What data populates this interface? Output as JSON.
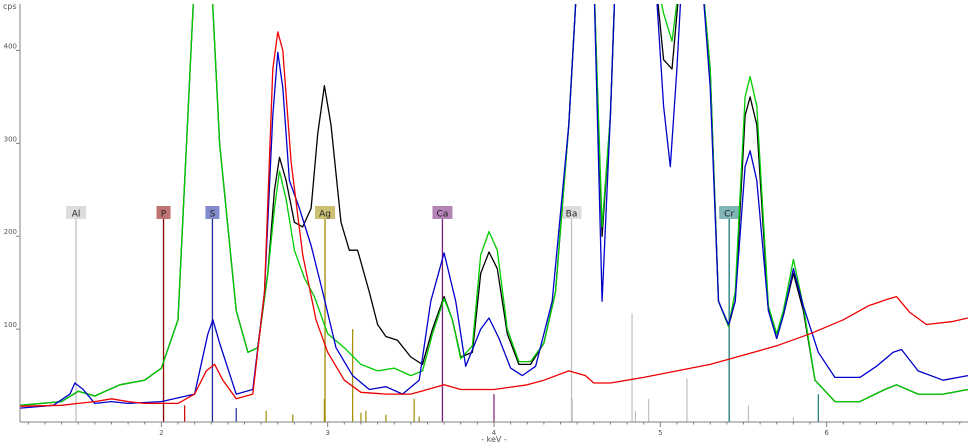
{
  "chart_data": {
    "type": "line",
    "title": "",
    "xlabel": "- keV -",
    "ylabel": "cps",
    "xlim": [
      1.15,
      6.85
    ],
    "ylim": [
      0,
      450
    ],
    "grid": false,
    "legend": "none",
    "x_ticks": [
      2,
      3,
      4,
      5,
      6
    ],
    "y_ticks": [
      100,
      200,
      300,
      400
    ],
    "series": [
      {
        "color": "#000000",
        "points": [
          [
            1.15,
            18
          ],
          [
            1.4,
            22
          ],
          [
            1.5,
            33
          ],
          [
            1.6,
            28
          ],
          [
            1.75,
            40
          ],
          [
            1.9,
            45
          ],
          [
            2.0,
            58
          ],
          [
            2.1,
            110
          ],
          [
            2.2,
            480
          ],
          [
            2.3,
            480
          ],
          [
            2.35,
            300
          ],
          [
            2.45,
            120
          ],
          [
            2.52,
            75
          ],
          [
            2.58,
            80
          ],
          [
            2.64,
            160
          ],
          [
            2.68,
            250
          ],
          [
            2.71,
            285
          ],
          [
            2.75,
            260
          ],
          [
            2.8,
            215
          ],
          [
            2.85,
            210
          ],
          [
            2.9,
            230
          ],
          [
            2.94,
            310
          ],
          [
            2.98,
            362
          ],
          [
            3.02,
            320
          ],
          [
            3.08,
            215
          ],
          [
            3.13,
            185
          ],
          [
            3.18,
            185
          ],
          [
            3.25,
            140
          ],
          [
            3.3,
            105
          ],
          [
            3.35,
            92
          ],
          [
            3.42,
            88
          ],
          [
            3.5,
            70
          ],
          [
            3.57,
            62
          ],
          [
            3.63,
            100
          ],
          [
            3.7,
            135
          ],
          [
            3.75,
            110
          ],
          [
            3.8,
            70
          ],
          [
            3.87,
            75
          ],
          [
            3.92,
            160
          ],
          [
            3.97,
            183
          ],
          [
            4.02,
            165
          ],
          [
            4.08,
            95
          ],
          [
            4.15,
            62
          ],
          [
            4.22,
            62
          ],
          [
            4.3,
            85
          ],
          [
            4.37,
            140
          ],
          [
            4.45,
            320
          ],
          [
            4.5,
            480
          ],
          [
            4.6,
            480
          ],
          [
            4.65,
            200
          ],
          [
            4.7,
            330
          ],
          [
            4.73,
            480
          ],
          [
            4.97,
            480
          ],
          [
            5.02,
            390
          ],
          [
            5.07,
            380
          ],
          [
            5.12,
            480
          ],
          [
            5.25,
            480
          ],
          [
            5.3,
            380
          ],
          [
            5.35,
            130
          ],
          [
            5.41,
            103
          ],
          [
            5.45,
            130
          ],
          [
            5.51,
            330
          ],
          [
            5.54,
            350
          ],
          [
            5.58,
            320
          ],
          [
            5.65,
            120
          ],
          [
            5.7,
            90
          ],
          [
            5.74,
            115
          ],
          [
            5.8,
            160
          ],
          [
            5.86,
            120
          ],
          [
            5.93,
            45
          ],
          [
            6.05,
            22
          ],
          [
            6.2,
            22
          ],
          [
            6.35,
            35
          ],
          [
            6.42,
            40
          ],
          [
            6.55,
            30
          ],
          [
            6.7,
            30
          ],
          [
            6.85,
            35
          ]
        ]
      },
      {
        "color": "#00cc00",
        "points": [
          [
            1.15,
            18
          ],
          [
            1.4,
            22
          ],
          [
            1.5,
            33
          ],
          [
            1.6,
            28
          ],
          [
            1.75,
            40
          ],
          [
            1.9,
            45
          ],
          [
            2.0,
            58
          ],
          [
            2.1,
            110
          ],
          [
            2.2,
            480
          ],
          [
            2.3,
            480
          ],
          [
            2.35,
            300
          ],
          [
            2.45,
            120
          ],
          [
            2.52,
            75
          ],
          [
            2.58,
            80
          ],
          [
            2.64,
            160
          ],
          [
            2.68,
            230
          ],
          [
            2.71,
            270
          ],
          [
            2.75,
            240
          ],
          [
            2.8,
            185
          ],
          [
            2.86,
            155
          ],
          [
            2.92,
            135
          ],
          [
            3.0,
            95
          ],
          [
            3.1,
            80
          ],
          [
            3.2,
            62
          ],
          [
            3.3,
            55
          ],
          [
            3.4,
            58
          ],
          [
            3.5,
            50
          ],
          [
            3.57,
            55
          ],
          [
            3.63,
            95
          ],
          [
            3.7,
            133
          ],
          [
            3.75,
            110
          ],
          [
            3.8,
            68
          ],
          [
            3.87,
            82
          ],
          [
            3.92,
            180
          ],
          [
            3.97,
            205
          ],
          [
            4.02,
            185
          ],
          [
            4.08,
            100
          ],
          [
            4.15,
            65
          ],
          [
            4.22,
            65
          ],
          [
            4.3,
            85
          ],
          [
            4.37,
            140
          ],
          [
            4.45,
            320
          ],
          [
            4.5,
            480
          ],
          [
            4.6,
            480
          ],
          [
            4.65,
            210
          ],
          [
            4.7,
            330
          ],
          [
            4.73,
            480
          ],
          [
            4.97,
            480
          ],
          [
            5.02,
            440
          ],
          [
            5.07,
            410
          ],
          [
            5.12,
            480
          ],
          [
            5.25,
            480
          ],
          [
            5.3,
            380
          ],
          [
            5.35,
            130
          ],
          [
            5.41,
            103
          ],
          [
            5.45,
            140
          ],
          [
            5.51,
            350
          ],
          [
            5.54,
            372
          ],
          [
            5.58,
            340
          ],
          [
            5.65,
            125
          ],
          [
            5.7,
            95
          ],
          [
            5.74,
            120
          ],
          [
            5.8,
            175
          ],
          [
            5.86,
            125
          ],
          [
            5.93,
            45
          ],
          [
            6.05,
            22
          ],
          [
            6.2,
            22
          ],
          [
            6.35,
            35
          ],
          [
            6.42,
            40
          ],
          [
            6.55,
            30
          ],
          [
            6.7,
            30
          ],
          [
            6.85,
            35
          ]
        ]
      },
      {
        "color": "#0000cc",
        "points": [
          [
            1.15,
            15
          ],
          [
            1.35,
            18
          ],
          [
            1.45,
            30
          ],
          [
            1.48,
            42
          ],
          [
            1.53,
            35
          ],
          [
            1.6,
            20
          ],
          [
            1.7,
            22
          ],
          [
            1.8,
            20
          ],
          [
            2.0,
            22
          ],
          [
            2.2,
            30
          ],
          [
            2.28,
            95
          ],
          [
            2.31,
            110
          ],
          [
            2.35,
            85
          ],
          [
            2.45,
            30
          ],
          [
            2.55,
            35
          ],
          [
            2.62,
            140
          ],
          [
            2.67,
            330
          ],
          [
            2.7,
            398
          ],
          [
            2.73,
            360
          ],
          [
            2.77,
            260
          ],
          [
            2.83,
            230
          ],
          [
            2.9,
            190
          ],
          [
            2.97,
            140
          ],
          [
            3.05,
            80
          ],
          [
            3.15,
            50
          ],
          [
            3.25,
            35
          ],
          [
            3.35,
            38
          ],
          [
            3.45,
            30
          ],
          [
            3.55,
            45
          ],
          [
            3.62,
            130
          ],
          [
            3.7,
            182
          ],
          [
            3.77,
            130
          ],
          [
            3.83,
            60
          ],
          [
            3.92,
            100
          ],
          [
            3.97,
            112
          ],
          [
            4.03,
            90
          ],
          [
            4.1,
            58
          ],
          [
            4.17,
            50
          ],
          [
            4.25,
            60
          ],
          [
            4.35,
            130
          ],
          [
            4.45,
            320
          ],
          [
            4.5,
            480
          ],
          [
            4.6,
            480
          ],
          [
            4.65,
            130
          ],
          [
            4.7,
            330
          ],
          [
            4.73,
            480
          ],
          [
            4.97,
            480
          ],
          [
            5.02,
            340
          ],
          [
            5.06,
            275
          ],
          [
            5.1,
            380
          ],
          [
            5.13,
            480
          ],
          [
            5.25,
            480
          ],
          [
            5.3,
            360
          ],
          [
            5.35,
            130
          ],
          [
            5.41,
            105
          ],
          [
            5.45,
            130
          ],
          [
            5.51,
            275
          ],
          [
            5.54,
            292
          ],
          [
            5.58,
            260
          ],
          [
            5.65,
            120
          ],
          [
            5.7,
            90
          ],
          [
            5.74,
            115
          ],
          [
            5.8,
            165
          ],
          [
            5.86,
            125
          ],
          [
            5.95,
            75
          ],
          [
            6.05,
            48
          ],
          [
            6.2,
            48
          ],
          [
            6.3,
            60
          ],
          [
            6.4,
            75
          ],
          [
            6.45,
            78
          ],
          [
            6.55,
            55
          ],
          [
            6.7,
            45
          ],
          [
            6.85,
            50
          ]
        ]
      },
      {
        "color": "#ee0000",
        "points": [
          [
            1.15,
            17
          ],
          [
            1.4,
            18
          ],
          [
            1.5,
            20
          ],
          [
            1.6,
            22
          ],
          [
            1.7,
            25
          ],
          [
            1.8,
            22
          ],
          [
            1.9,
            20
          ],
          [
            2.0,
            20
          ],
          [
            2.1,
            20
          ],
          [
            2.2,
            30
          ],
          [
            2.27,
            55
          ],
          [
            2.32,
            62
          ],
          [
            2.37,
            45
          ],
          [
            2.45,
            25
          ],
          [
            2.55,
            30
          ],
          [
            2.62,
            140
          ],
          [
            2.67,
            380
          ],
          [
            2.7,
            420
          ],
          [
            2.73,
            400
          ],
          [
            2.78,
            280
          ],
          [
            2.85,
            180
          ],
          [
            2.93,
            110
          ],
          [
            3.0,
            75
          ],
          [
            3.1,
            45
          ],
          [
            3.2,
            32
          ],
          [
            3.35,
            30
          ],
          [
            3.5,
            30
          ],
          [
            3.6,
            35
          ],
          [
            3.7,
            40
          ],
          [
            3.8,
            35
          ],
          [
            3.9,
            35
          ],
          [
            4.0,
            35
          ],
          [
            4.2,
            40
          ],
          [
            4.3,
            45
          ],
          [
            4.45,
            55
          ],
          [
            4.55,
            50
          ],
          [
            4.6,
            42
          ],
          [
            4.7,
            42
          ],
          [
            4.9,
            48
          ],
          [
            5.1,
            55
          ],
          [
            5.3,
            62
          ],
          [
            5.5,
            72
          ],
          [
            5.7,
            82
          ],
          [
            5.9,
            95
          ],
          [
            6.1,
            110
          ],
          [
            6.25,
            125
          ],
          [
            6.38,
            133
          ],
          [
            6.42,
            135
          ],
          [
            6.5,
            118
          ],
          [
            6.6,
            105
          ],
          [
            6.75,
            108
          ],
          [
            6.85,
            112
          ]
        ]
      }
    ],
    "element_markers": [
      {
        "label": "Al",
        "energy": 1.487,
        "color": "#c0c0c0"
      },
      {
        "label": "P",
        "energy": 2.013,
        "color": "#8b0000"
      },
      {
        "label": "S",
        "energy": 2.307,
        "color": "#1e2aa0"
      },
      {
        "label": "Ag",
        "energy": 2.984,
        "color": "#a08c00"
      },
      {
        "label": "Ca",
        "energy": 3.69,
        "color": "#7a1e7a"
      },
      {
        "label": "Ba",
        "energy": 4.466,
        "color": "#c0c0c0"
      },
      {
        "label": "Cr",
        "energy": 5.414,
        "color": "#1a7a7a"
      }
    ],
    "stick_lines": [
      {
        "energy": 2.14,
        "height": 18,
        "color": "#cc0000"
      },
      {
        "energy": 2.45,
        "height": 15,
        "color": "#1e2aa0"
      },
      {
        "energy": 2.63,
        "height": 12,
        "color": "#a08c00"
      },
      {
        "energy": 2.79,
        "height": 8,
        "color": "#a08c00"
      },
      {
        "energy": 2.98,
        "height": 25,
        "color": "#a08c00"
      },
      {
        "energy": 3.15,
        "height": 100,
        "color": "#a08c00"
      },
      {
        "energy": 3.2,
        "height": 10,
        "color": "#a08c00"
      },
      {
        "energy": 3.23,
        "height": 12,
        "color": "#a08c00"
      },
      {
        "energy": 3.35,
        "height": 8,
        "color": "#a08c00"
      },
      {
        "energy": 3.52,
        "height": 25,
        "color": "#a08c00"
      },
      {
        "energy": 3.55,
        "height": 6,
        "color": "#a08c00"
      },
      {
        "energy": 4.0,
        "height": 30,
        "color": "#7a1e7a"
      },
      {
        "energy": 4.47,
        "height": 25,
        "color": "#c0c0c0"
      },
      {
        "energy": 4.83,
        "height": 117,
        "color": "#c0c0c0"
      },
      {
        "energy": 4.85,
        "height": 12,
        "color": "#c0c0c0"
      },
      {
        "energy": 4.93,
        "height": 25,
        "color": "#c0c0c0"
      },
      {
        "energy": 5.16,
        "height": 47,
        "color": "#c0c0c0"
      },
      {
        "energy": 5.53,
        "height": 18,
        "color": "#c0c0c0"
      },
      {
        "energy": 5.8,
        "height": 5,
        "color": "#c0c0c0"
      },
      {
        "energy": 5.95,
        "height": 30,
        "color": "#1a7a7a"
      }
    ]
  }
}
